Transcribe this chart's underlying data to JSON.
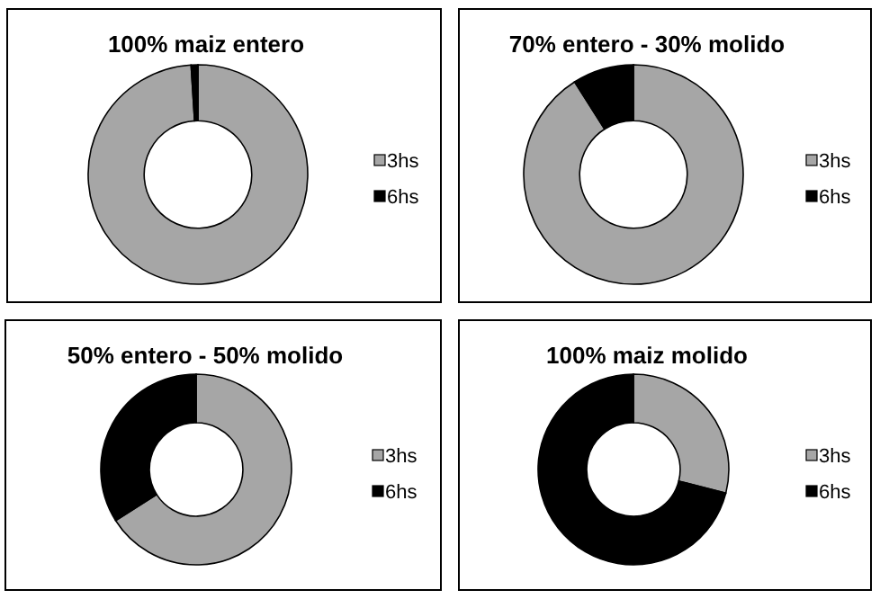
{
  "chart_data": [
    {
      "type": "donut",
      "title": "100% maiz entero",
      "categories": [
        "3hs",
        "6hs"
      ],
      "values": [
        99,
        1
      ],
      "colors": [
        "#a6a6a6",
        "#000000"
      ],
      "legend": "right"
    },
    {
      "type": "donut",
      "title": "70% entero - 30% molido",
      "categories": [
        "3hs",
        "6hs"
      ],
      "values": [
        91,
        9
      ],
      "colors": [
        "#a6a6a6",
        "#000000"
      ],
      "legend": "right"
    },
    {
      "type": "donut",
      "title": "50% entero - 50% molido",
      "categories": [
        "3hs",
        "6hs"
      ],
      "values": [
        66,
        34
      ],
      "colors": [
        "#a6a6a6",
        "#000000"
      ],
      "legend": "right"
    },
    {
      "type": "donut",
      "title": "100% maiz molido",
      "categories": [
        "3hs",
        "6hs"
      ],
      "values": [
        29,
        71
      ],
      "colors": [
        "#a6a6a6",
        "#000000"
      ],
      "legend": "right"
    }
  ]
}
